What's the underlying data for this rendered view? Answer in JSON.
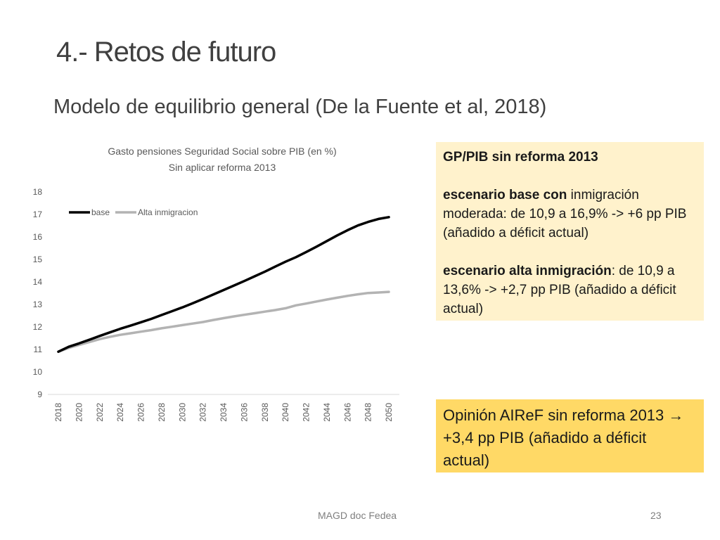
{
  "slide": {
    "title": "4.- Retos de futuro",
    "subtitle": "Modelo de equilibrio general (De la Fuente et al, 2018)"
  },
  "note_box": {
    "heading": "GP/PIB sin reforma 2013",
    "base_bold": "escenario base con",
    "base_rest": " inmigración moderada: de 10,9 a 16,9% -> +6 pp PIB (añadido a déficit actual)",
    "alta_bold": "escenario alta inmigración",
    "alta_rest": ": de 10,9 a 13,6% -> +2,7 pp PIB (añadido a déficit actual)",
    "background": "#fff2cc"
  },
  "opinion_box": {
    "text": "Opinión AIReF sin reforma 2013 ",
    "arrow": "→",
    "text2": " +3,4 pp PIB (añadido a déficit actual)",
    "background": "#ffd966"
  },
  "footer": {
    "source": "MAGD doc Fedea",
    "page": "23"
  },
  "chart_data": {
    "type": "line",
    "title": "Gasto pensiones Seguridad Social sobre PIB (en %)",
    "subtitle": "Sin aplicar reforma 2013",
    "xlabel": "",
    "ylabel": "",
    "x": [
      2018,
      2019,
      2020,
      2021,
      2022,
      2023,
      2024,
      2025,
      2026,
      2027,
      2028,
      2029,
      2030,
      2031,
      2032,
      2033,
      2034,
      2035,
      2036,
      2037,
      2038,
      2039,
      2040,
      2041,
      2042,
      2043,
      2044,
      2045,
      2046,
      2047,
      2048,
      2049,
      2050
    ],
    "x_ticks": [
      "2018",
      "2020",
      "2022",
      "2024",
      "2026",
      "2028",
      "2030",
      "2032",
      "2034",
      "2036",
      "2038",
      "2040",
      "2042",
      "2044",
      "2046",
      "2048",
      "2050"
    ],
    "y_ticks": [
      "9",
      "10",
      "11",
      "12",
      "13",
      "14",
      "15",
      "16",
      "17",
      "18"
    ],
    "ylim": [
      9,
      18
    ],
    "grid": false,
    "legend_position": "top-left",
    "series": [
      {
        "name": "base",
        "color": "#000000",
        "values": [
          10.9,
          11.12,
          11.27,
          11.43,
          11.6,
          11.76,
          11.92,
          12.06,
          12.21,
          12.36,
          12.53,
          12.7,
          12.87,
          13.05,
          13.24,
          13.44,
          13.64,
          13.84,
          14.04,
          14.25,
          14.46,
          14.68,
          14.9,
          15.1,
          15.33,
          15.57,
          15.82,
          16.07,
          16.3,
          16.51,
          16.67,
          16.8,
          16.88
        ]
      },
      {
        "name": "Alta inmigracion",
        "color": "#b3b3b3",
        "values": [
          10.9,
          11.07,
          11.2,
          11.33,
          11.46,
          11.56,
          11.65,
          11.72,
          11.79,
          11.86,
          11.94,
          12.01,
          12.08,
          12.15,
          12.22,
          12.31,
          12.39,
          12.47,
          12.54,
          12.61,
          12.68,
          12.75,
          12.83,
          12.96,
          13.04,
          13.13,
          13.22,
          13.3,
          13.38,
          13.45,
          13.51,
          13.53,
          13.56
        ]
      }
    ]
  }
}
